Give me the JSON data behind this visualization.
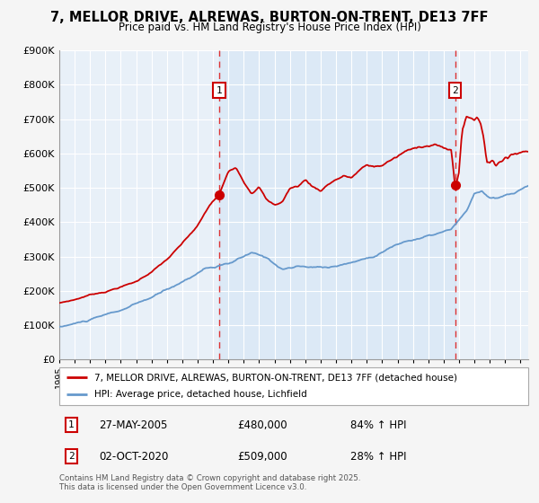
{
  "title": "7, MELLOR DRIVE, ALREWAS, BURTON-ON-TRENT, DE13 7FF",
  "subtitle": "Price paid vs. HM Land Registry's House Price Index (HPI)",
  "footer": "Contains HM Land Registry data © Crown copyright and database right 2025.\nThis data is licensed under the Open Government Licence v3.0.",
  "legend_entries": [
    "7, MELLOR DRIVE, ALREWAS, BURTON-ON-TRENT, DE13 7FF (detached house)",
    "HPI: Average price, detached house, Lichfield"
  ],
  "annotation1": {
    "label": "1",
    "date": "27-MAY-2005",
    "price": "£480,000",
    "hpi": "84% ↑ HPI"
  },
  "annotation2": {
    "label": "2",
    "date": "02-OCT-2020",
    "price": "£509,000",
    "hpi": "28% ↑ HPI"
  },
  "red_color": "#cc0000",
  "blue_color": "#6699cc",
  "plot_bg": "#e8f0f8",
  "grid_color": "#ffffff",
  "vline_color": "#dd3333",
  "marker1_x": 2005.41,
  "marker1_y": 480000,
  "marker2_x": 2020.75,
  "marker2_y": 509000,
  "ylim": [
    0,
    900000
  ],
  "yticks": [
    0,
    100000,
    200000,
    300000,
    400000,
    500000,
    600000,
    700000,
    800000,
    900000
  ],
  "xlim_start": 1995.0,
  "xlim_end": 2025.5
}
